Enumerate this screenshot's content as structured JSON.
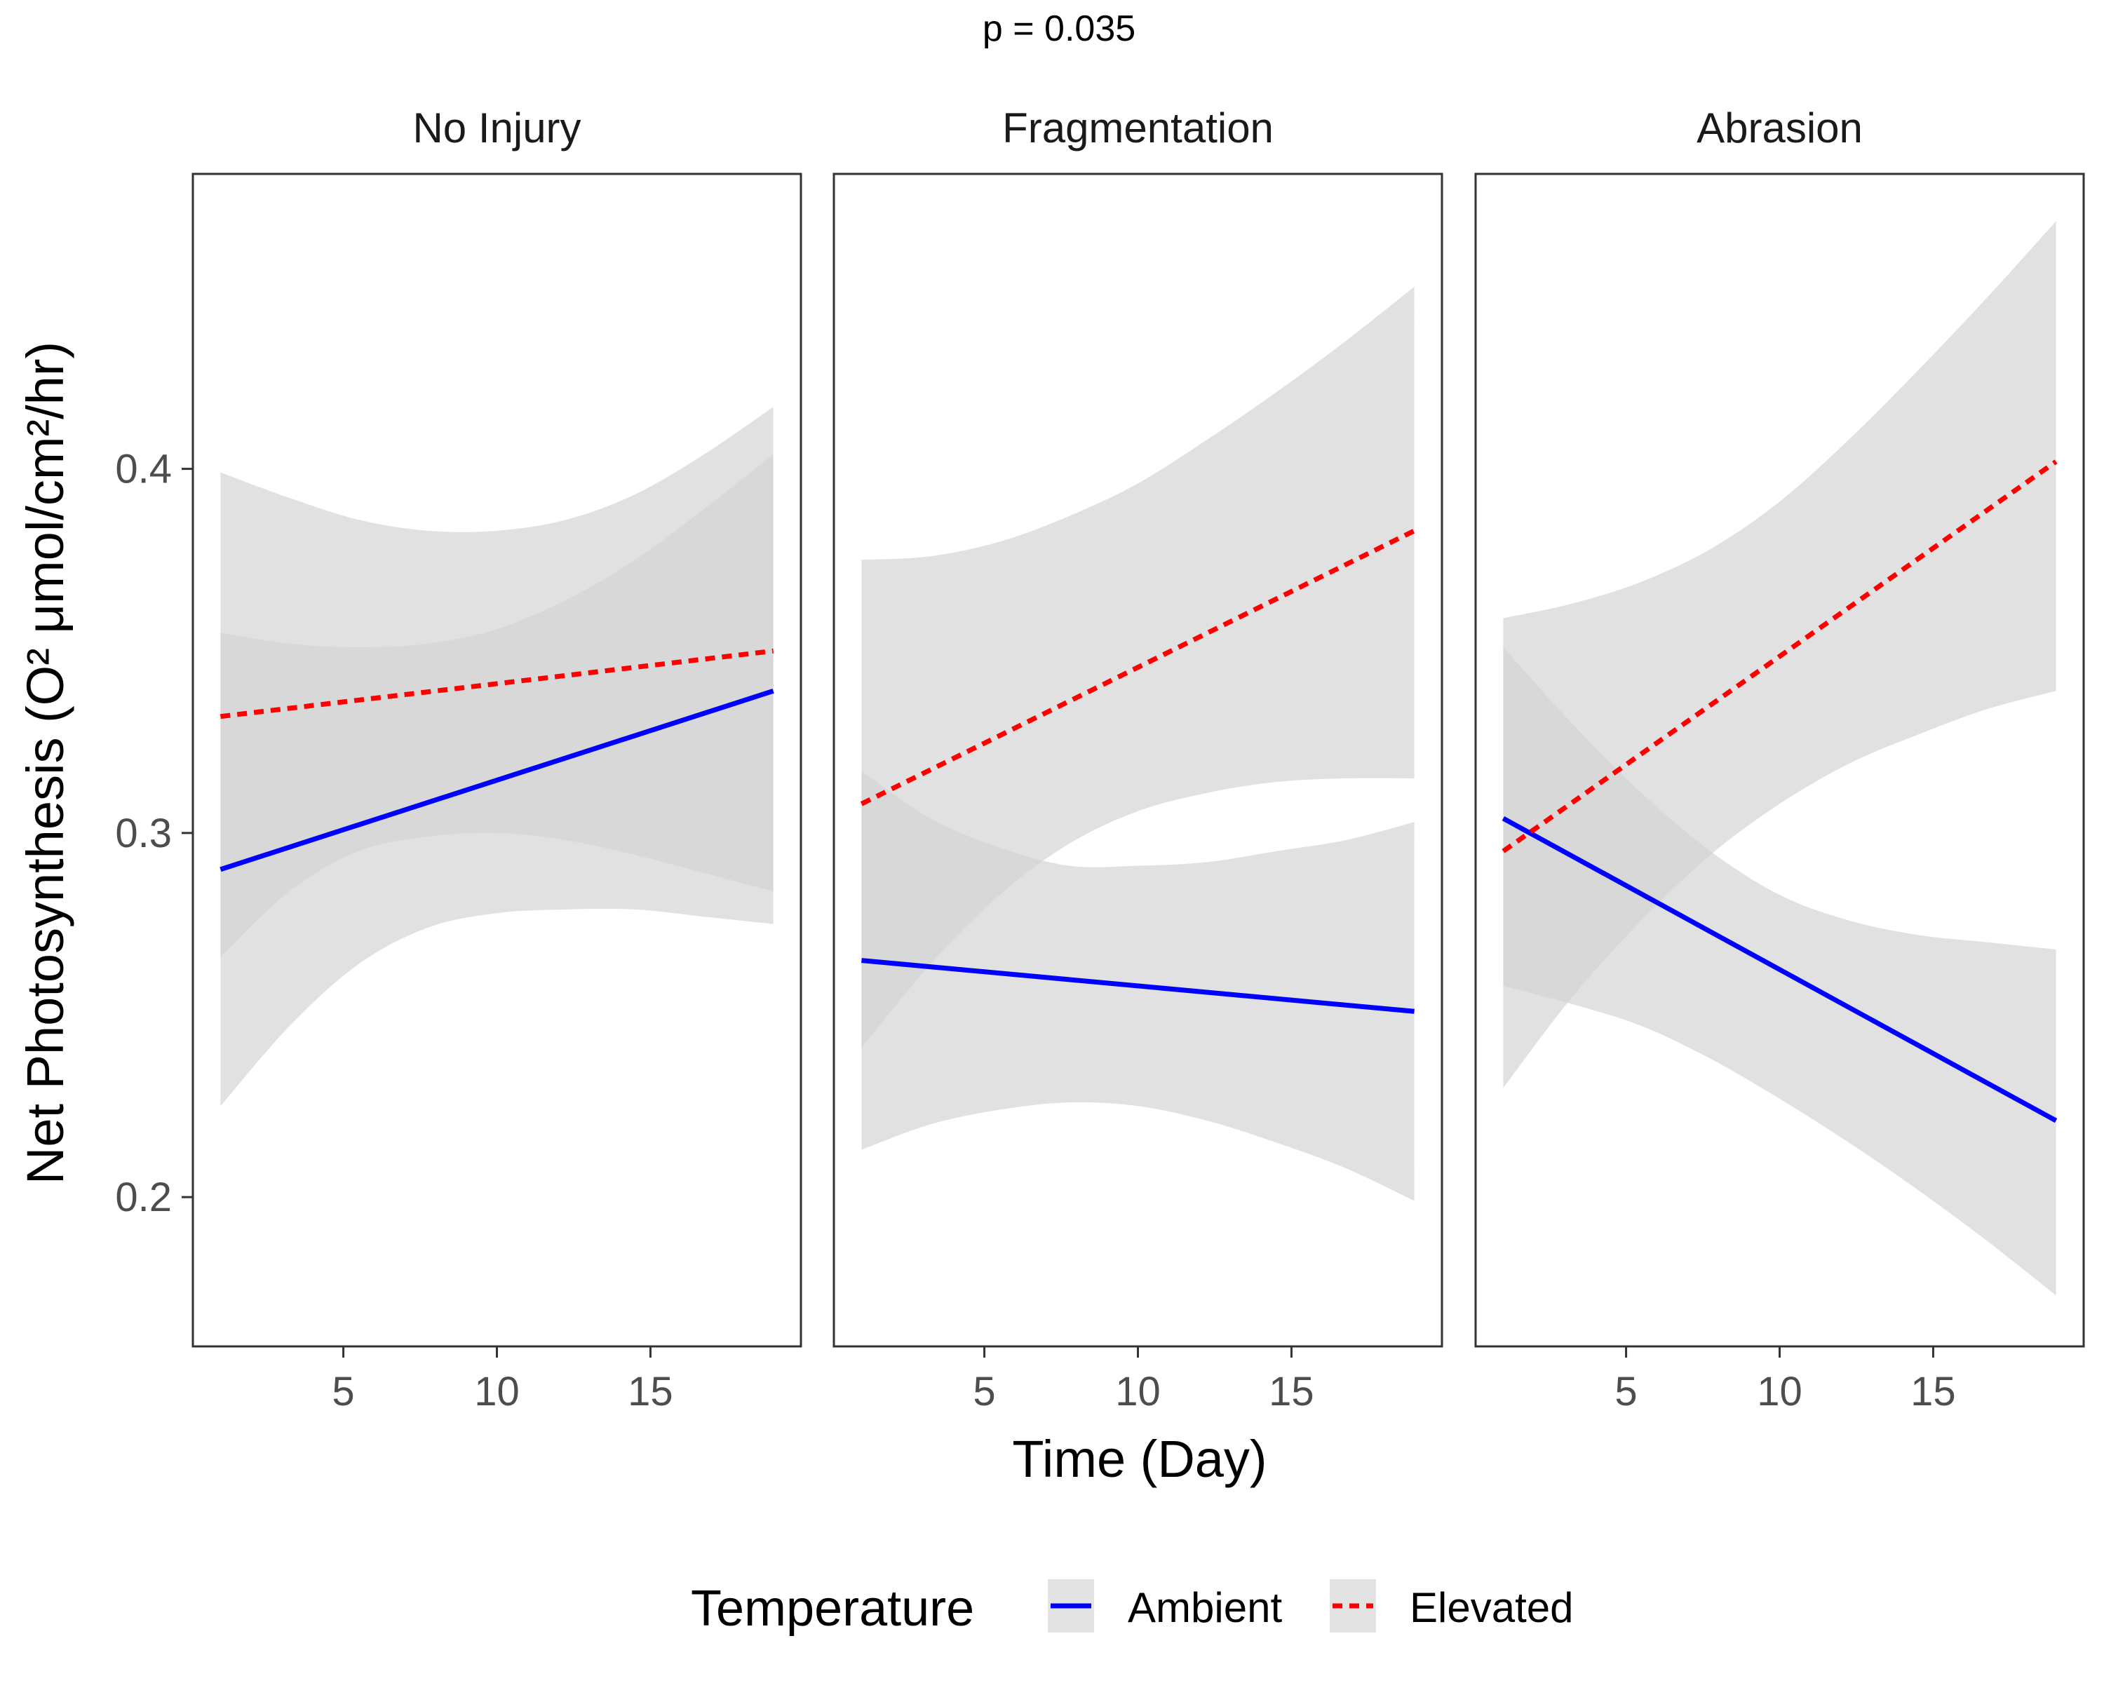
{
  "chart_data": {
    "type": "line",
    "subtitle": "p = 0.035",
    "xlabel": "Time (Day)",
    "ylabel": "Net Photosynthesis (O² μmol/cm²/hr)",
    "xlim": [
      0.1,
      19.9
    ],
    "ylim": [
      0.159,
      0.481
    ],
    "xticks": [
      "5",
      "10",
      "15"
    ],
    "yticks": [
      "0.2",
      "0.3",
      "0.4"
    ],
    "grid": false,
    "legend": {
      "title": "Temperature",
      "position": "bottom",
      "items": [
        "Ambient",
        "Elevated"
      ]
    },
    "series_styles": {
      "Ambient": {
        "color": "#0000ff",
        "dash": "solid"
      },
      "Elevated": {
        "color": "#ff0000",
        "dash": "dashed"
      }
    },
    "band_color": "#d4d4d4",
    "panels": [
      {
        "label": "No Injury",
        "series": [
          {
            "name": "Ambient",
            "x": [
              1,
              19
            ],
            "y": [
              0.29,
              0.339
            ],
            "band_x": [
              1,
              3.25,
              5.5,
              7.75,
              10,
              12.25,
              14.5,
              16.75,
              19
            ],
            "band_lower": [
              0.266,
              0.284,
              0.295,
              0.299,
              0.3,
              0.298,
              0.294,
              0.289,
              0.284
            ],
            "band_upper": [
              0.355,
              0.352,
              0.351,
              0.352,
              0.356,
              0.364,
              0.375,
              0.389,
              0.404
            ]
          },
          {
            "name": "Elevated",
            "x": [
              1,
              19
            ],
            "y": [
              0.332,
              0.35
            ],
            "band_x": [
              1,
              3.25,
              5.5,
              7.75,
              10,
              12.25,
              14.5,
              16.75,
              19
            ],
            "band_lower": [
              0.225,
              0.247,
              0.264,
              0.274,
              0.278,
              0.279,
              0.279,
              0.277,
              0.275
            ],
            "band_upper": [
              0.399,
              0.392,
              0.386,
              0.383,
              0.383,
              0.386,
              0.393,
              0.404,
              0.417
            ]
          }
        ]
      },
      {
        "label": "Fragmentation",
        "series": [
          {
            "name": "Ambient",
            "x": [
              1,
              19
            ],
            "y": [
              0.265,
              0.251
            ],
            "band_x": [
              1,
              3.25,
              5.5,
              7.75,
              10,
              12.25,
              14.5,
              16.75,
              19
            ],
            "band_lower": [
              0.213,
              0.22,
              0.224,
              0.226,
              0.225,
              0.221,
              0.215,
              0.208,
              0.199
            ],
            "band_upper": [
              0.317,
              0.304,
              0.296,
              0.291,
              0.291,
              0.292,
              0.295,
              0.298,
              0.303
            ]
          },
          {
            "name": "Elevated",
            "x": [
              1,
              19
            ],
            "y": [
              0.308,
              0.383
            ],
            "band_x": [
              1,
              3.25,
              5.5,
              7.75,
              10,
              12.25,
              14.5,
              16.75,
              19
            ],
            "band_lower": [
              0.241,
              0.264,
              0.283,
              0.297,
              0.306,
              0.311,
              0.314,
              0.315,
              0.315
            ],
            "band_upper": [
              0.375,
              0.376,
              0.38,
              0.387,
              0.396,
              0.408,
              0.421,
              0.435,
              0.45
            ]
          }
        ]
      },
      {
        "label": "Abrasion",
        "series": [
          {
            "name": "Ambient",
            "x": [
              1,
              19
            ],
            "y": [
              0.304,
              0.221
            ],
            "band_x": [
              1,
              3.25,
              5.5,
              7.75,
              10,
              12.25,
              14.5,
              16.75,
              19
            ],
            "band_lower": [
              0.258,
              0.253,
              0.247,
              0.238,
              0.227,
              0.215,
              0.202,
              0.188,
              0.173
            ],
            "band_upper": [
              0.351,
              0.33,
              0.311,
              0.295,
              0.283,
              0.276,
              0.272,
              0.27,
              0.268
            ]
          },
          {
            "name": "Elevated",
            "x": [
              1,
              19
            ],
            "y": [
              0.295,
              0.402
            ],
            "band_x": [
              1,
              3.25,
              5.5,
              7.75,
              10,
              12.25,
              14.5,
              16.75,
              19
            ],
            "band_lower": [
              0.23,
              0.255,
              0.276,
              0.294,
              0.308,
              0.319,
              0.327,
              0.334,
              0.339
            ],
            "band_upper": [
              0.359,
              0.363,
              0.369,
              0.378,
              0.391,
              0.408,
              0.427,
              0.447,
              0.468
            ]
          }
        ]
      }
    ]
  }
}
